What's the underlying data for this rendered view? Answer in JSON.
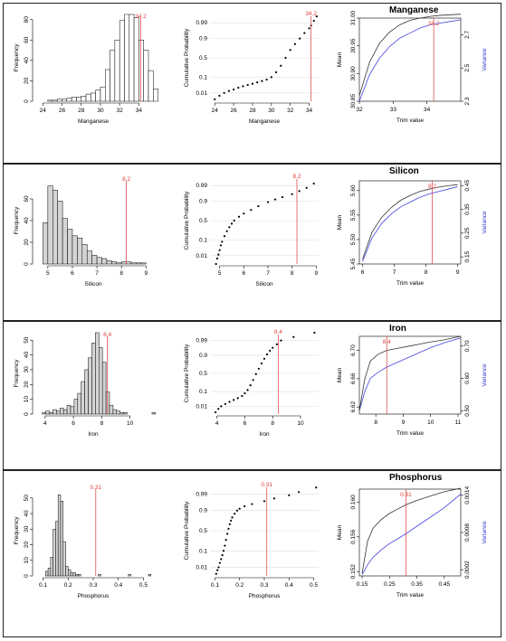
{
  "panels": [
    {
      "title": "Manganese",
      "threshold_label": "34.2",
      "chart_data": [
        {
          "type": "bar",
          "xlabel": "Manganese",
          "ylabel": "Frequency",
          "xlim": [
            23.5,
            35
          ],
          "ylim": [
            0,
            85
          ],
          "xticks": [
            24,
            26,
            28,
            30,
            32,
            34
          ],
          "yticks": [
            0,
            20,
            40,
            60,
            80
          ],
          "bin_start": 24,
          "bin_width": 0.5,
          "values": [
            0,
            1,
            1,
            2,
            2,
            3,
            4,
            4,
            5,
            7,
            8,
            11,
            14,
            31,
            50,
            60,
            79,
            85,
            85,
            82,
            60,
            50,
            30,
            12
          ],
          "threshold": 34.2
        },
        {
          "type": "scatter",
          "xlabel": "Manganese",
          "ylabel": "Cumulative Probability",
          "xlim": [
            23.5,
            35
          ],
          "xticks": [
            24,
            26,
            28,
            30,
            32,
            34
          ],
          "yticks": [
            0.01,
            0.1,
            0.5,
            0.9,
            0.99
          ],
          "ytick_labels": [
            "0.01",
            "0.1",
            "0.5",
            "0.9",
            "0.99"
          ],
          "threshold": 34.2,
          "points": [
            [
              24.0,
              0.003
            ],
            [
              24.5,
              0.006
            ],
            [
              25.0,
              0.01
            ],
            [
              25.5,
              0.014
            ],
            [
              26.0,
              0.018
            ],
            [
              26.5,
              0.024
            ],
            [
              27.0,
              0.03
            ],
            [
              27.5,
              0.036
            ],
            [
              28.0,
              0.043
            ],
            [
              28.5,
              0.052
            ],
            [
              29.0,
              0.062
            ],
            [
              29.5,
              0.075
            ],
            [
              30.0,
              0.1
            ],
            [
              30.5,
              0.17
            ],
            [
              31.0,
              0.3
            ],
            [
              31.5,
              0.5
            ],
            [
              32.0,
              0.7
            ],
            [
              32.5,
              0.82
            ],
            [
              33.0,
              0.9
            ],
            [
              33.5,
              0.95
            ],
            [
              34.0,
              0.975
            ],
            [
              34.2,
              0.984
            ],
            [
              34.5,
              0.993
            ],
            [
              34.8,
              0.997
            ]
          ]
        },
        {
          "type": "line",
          "xlabel": "Trim value",
          "ylabel": "Mean",
          "y2label": "Variance",
          "xlim": [
            32,
            35
          ],
          "ylim": [
            30.85,
            31.0
          ],
          "y2lim": [
            2.3,
            2.8
          ],
          "xticks": [
            32.0,
            33.0,
            34.0
          ],
          "yticks": [
            30.85,
            30.9,
            30.95,
            31.0
          ],
          "ytick_labels": [
            "30.85",
            "30.90",
            "30.95",
            "31.00"
          ],
          "y2ticks": [
            2.3,
            2.5,
            2.7
          ],
          "y2tick_labels": [
            "2.3",
            "2.5",
            "2.7"
          ],
          "threshold": 34.2,
          "x": [
            32.0,
            32.3,
            32.6,
            32.9,
            33.2,
            33.5,
            33.8,
            34.1,
            34.4,
            34.7,
            35.0
          ],
          "mean": [
            30.86,
            30.92,
            30.955,
            30.975,
            30.988,
            30.996,
            31.0,
            31.003,
            31.005,
            31.006,
            31.007
          ],
          "variance": [
            2.3,
            2.46,
            2.56,
            2.63,
            2.68,
            2.71,
            2.74,
            2.76,
            2.77,
            2.78,
            2.79
          ]
        }
      ]
    },
    {
      "title": "Silicon",
      "threshold_label": "8.2",
      "chart_data": [
        {
          "type": "bar",
          "xlabel": "Silicon",
          "ylabel": "Frequency",
          "xlim": [
            4.6,
            9.1
          ],
          "ylim": [
            0,
            80
          ],
          "xticks": [
            5,
            6,
            7,
            8,
            9
          ],
          "yticks": [
            0,
            20,
            40,
            60
          ],
          "bin_start": 4.8,
          "bin_width": 0.2,
          "values": [
            38,
            72,
            68,
            58,
            42,
            32,
            26,
            24,
            18,
            12,
            8,
            6,
            5,
            3,
            2,
            1,
            2,
            2,
            1,
            1,
            1,
            0
          ],
          "threshold": 8.2
        },
        {
          "type": "scatter",
          "xlabel": "Silicon",
          "ylabel": "Cumulative Probability",
          "xlim": [
            4.6,
            9.1
          ],
          "xticks": [
            5,
            6,
            7,
            8,
            9
          ],
          "yticks": [
            0.01,
            0.1,
            0.5,
            0.9,
            0.99
          ],
          "ytick_labels": [
            "0.01",
            "0.1",
            "0.5",
            "0.9",
            "0.99"
          ],
          "threshold": 8.2,
          "points": [
            [
              4.85,
              0.002
            ],
            [
              4.9,
              0.006
            ],
            [
              4.95,
              0.012
            ],
            [
              5.0,
              0.025
            ],
            [
              5.05,
              0.05
            ],
            [
              5.1,
              0.08
            ],
            [
              5.2,
              0.15
            ],
            [
              5.3,
              0.24
            ],
            [
              5.4,
              0.33
            ],
            [
              5.5,
              0.42
            ],
            [
              5.6,
              0.5
            ],
            [
              5.8,
              0.6
            ],
            [
              6.0,
              0.68
            ],
            [
              6.3,
              0.76
            ],
            [
              6.6,
              0.83
            ],
            [
              7.0,
              0.89
            ],
            [
              7.3,
              0.92
            ],
            [
              7.6,
              0.94
            ],
            [
              8.0,
              0.96
            ],
            [
              8.3,
              0.975
            ],
            [
              8.6,
              0.985
            ],
            [
              8.9,
              0.993
            ]
          ]
        },
        {
          "type": "line",
          "xlabel": "Trim value",
          "ylabel": "Mean",
          "y2label": "Variance",
          "xlim": [
            5.9,
            9.1
          ],
          "ylim": [
            5.45,
            5.62
          ],
          "y2lim": [
            0.12,
            0.47
          ],
          "xticks": [
            6.0,
            7.0,
            8.0,
            9.0
          ],
          "yticks": [
            5.45,
            5.5,
            5.55,
            5.6
          ],
          "ytick_labels": [
            "5.45",
            "5.50",
            "5.55",
            "5.60"
          ],
          "y2ticks": [
            0.15,
            0.25,
            0.35,
            0.45
          ],
          "y2tick_labels": [
            "0.15",
            "0.25",
            "0.35",
            "0.45"
          ],
          "threshold": 8.2,
          "x": [
            6.0,
            6.3,
            6.6,
            6.9,
            7.2,
            7.5,
            7.8,
            8.1,
            8.4,
            8.7,
            9.0
          ],
          "mean": [
            5.46,
            5.515,
            5.545,
            5.565,
            5.58,
            5.59,
            5.598,
            5.603,
            5.607,
            5.61,
            5.612
          ],
          "variance": [
            0.13,
            0.23,
            0.29,
            0.33,
            0.36,
            0.38,
            0.4,
            0.415,
            0.425,
            0.435,
            0.445
          ]
        }
      ]
    },
    {
      "title": "Iron",
      "threshold_label": "8.4",
      "chart_data": [
        {
          "type": "bar",
          "xlabel": "Iron",
          "ylabel": "Frequency",
          "xlim": [
            3.5,
            11.3
          ],
          "ylim": [
            0,
            55
          ],
          "xticks": [
            4,
            6,
            8,
            10
          ],
          "yticks": [
            0,
            10,
            20,
            30,
            40,
            50
          ],
          "bin_start": 3.8,
          "bin_width": 0.25,
          "values": [
            1,
            2,
            1,
            3,
            2,
            4,
            3,
            6,
            5,
            10,
            14,
            22,
            30,
            38,
            48,
            55,
            45,
            35,
            15,
            6,
            3,
            2,
            1,
            1,
            0,
            0,
            0,
            0,
            0,
            0,
            0,
            1
          ],
          "threshold": 8.4
        },
        {
          "type": "scatter",
          "xlabel": "Iron",
          "ylabel": "Cumulative Probability",
          "xlim": [
            3.5,
            11.3
          ],
          "xticks": [
            4,
            6,
            8,
            10
          ],
          "yticks": [
            0.01,
            0.1,
            0.5,
            0.9,
            0.99
          ],
          "ytick_labels": [
            "0.01",
            "0.1",
            "0.5",
            "0.9",
            "0.99"
          ],
          "threshold": 8.4,
          "points": [
            [
              3.9,
              0.003
            ],
            [
              4.1,
              0.006
            ],
            [
              4.3,
              0.01
            ],
            [
              4.6,
              0.015
            ],
            [
              4.9,
              0.022
            ],
            [
              5.2,
              0.03
            ],
            [
              5.5,
              0.04
            ],
            [
              5.8,
              0.055
            ],
            [
              6.0,
              0.08
            ],
            [
              6.2,
              0.12
            ],
            [
              6.4,
              0.2
            ],
            [
              6.6,
              0.32
            ],
            [
              6.8,
              0.48
            ],
            [
              7.0,
              0.63
            ],
            [
              7.2,
              0.76
            ],
            [
              7.4,
              0.85
            ],
            [
              7.6,
              0.91
            ],
            [
              7.8,
              0.945
            ],
            [
              8.0,
              0.965
            ],
            [
              8.3,
              0.98
            ],
            [
              8.6,
              0.99
            ],
            [
              9.5,
              0.995
            ],
            [
              11.0,
              0.998
            ]
          ]
        },
        {
          "type": "line",
          "xlabel": "Trim value",
          "ylabel": "Mean",
          "y2label": "Variance",
          "xlim": [
            7.4,
            11.1
          ],
          "ylim": [
            6.61,
            6.72
          ],
          "y2lim": [
            0.49,
            0.73
          ],
          "xticks": [
            8,
            9,
            10,
            11
          ],
          "yticks": [
            6.62,
            6.66,
            6.7
          ],
          "ytick_labels": [
            "6.62",
            "6.66",
            "6.70"
          ],
          "y2ticks": [
            0.5,
            0.6,
            0.7
          ],
          "y2tick_labels": [
            "0.50",
            "0.60",
            "0.70"
          ],
          "threshold": 8.4,
          "x": [
            7.4,
            7.6,
            7.8,
            8.1,
            8.4,
            8.8,
            9.2,
            9.6,
            10.0,
            10.5,
            11.1
          ],
          "mean": [
            6.615,
            6.66,
            6.685,
            6.695,
            6.7,
            6.703,
            6.706,
            6.709,
            6.712,
            6.715,
            6.72
          ],
          "variance": [
            0.5,
            0.56,
            0.6,
            0.62,
            0.635,
            0.65,
            0.665,
            0.68,
            0.695,
            0.71,
            0.725
          ]
        }
      ]
    },
    {
      "title": "Phosphorus",
      "threshold_label": "0.31",
      "chart_data": [
        {
          "type": "bar",
          "xlabel": "Phosphorus",
          "ylabel": "Frequency",
          "xlim": [
            0.08,
            0.52
          ],
          "ylim": [
            0,
            58
          ],
          "xticks": [
            0.1,
            0.2,
            0.3,
            0.4,
            0.5
          ],
          "yticks": [
            0,
            10,
            20,
            30,
            40,
            50
          ],
          "bin_start": 0.11,
          "bin_width": 0.01,
          "values": [
            3,
            5,
            12,
            30,
            35,
            52,
            48,
            22,
            6,
            4,
            2,
            2,
            1,
            1,
            0,
            0,
            0,
            0,
            0,
            0,
            0,
            1,
            0,
            0,
            0,
            0,
            0,
            0,
            0,
            0,
            0,
            0,
            0,
            1,
            0,
            0,
            0,
            0,
            0,
            0,
            0,
            1
          ],
          "threshold": 0.31
        },
        {
          "type": "scatter",
          "xlabel": "Phosphorus",
          "ylabel": "Cumulative Probability",
          "xlim": [
            0.08,
            0.52
          ],
          "xticks": [
            0.1,
            0.2,
            0.3,
            0.4,
            0.5
          ],
          "yticks": [
            0.01,
            0.1,
            0.5,
            0.9,
            0.99
          ],
          "ytick_labels": [
            "0.01",
            "0.1",
            "0.5",
            "0.9",
            "0.99"
          ],
          "threshold": 0.31,
          "points": [
            [
              0.105,
              0.003
            ],
            [
              0.11,
              0.006
            ],
            [
              0.115,
              0.01
            ],
            [
              0.12,
              0.02
            ],
            [
              0.125,
              0.035
            ],
            [
              0.13,
              0.06
            ],
            [
              0.135,
              0.1
            ],
            [
              0.14,
              0.17
            ],
            [
              0.145,
              0.28
            ],
            [
              0.15,
              0.42
            ],
            [
              0.155,
              0.55
            ],
            [
              0.16,
              0.66
            ],
            [
              0.165,
              0.74
            ],
            [
              0.17,
              0.8
            ],
            [
              0.18,
              0.86
            ],
            [
              0.19,
              0.9
            ],
            [
              0.2,
              0.92
            ],
            [
              0.22,
              0.94
            ],
            [
              0.25,
              0.955
            ],
            [
              0.3,
              0.97
            ],
            [
              0.34,
              0.98
            ],
            [
              0.4,
              0.988
            ],
            [
              0.44,
              0.993
            ],
            [
              0.51,
              0.997
            ]
          ]
        },
        {
          "type": "line",
          "xlabel": "Trim value",
          "ylabel": "Mean",
          "y2label": "Variance",
          "xlim": [
            0.14,
            0.51
          ],
          "ylim": [
            0.1515,
            0.1615
          ],
          "y2lim": [
            0.0001,
            0.0015
          ],
          "xticks": [
            0.15,
            0.25,
            0.35,
            0.45
          ],
          "yticks": [
            0.152,
            0.156,
            0.16
          ],
          "ytick_labels": [
            "0.152",
            "0.156",
            "0.160"
          ],
          "y2ticks": [
            0.0002,
            0.0008,
            0.0014
          ],
          "y2tick_labels": [
            "0.0002",
            "0.0008",
            "0.0014"
          ],
          "threshold": 0.31,
          "x": [
            0.15,
            0.17,
            0.19,
            0.22,
            0.25,
            0.28,
            0.31,
            0.35,
            0.4,
            0.45,
            0.51
          ],
          "mean": [
            0.1518,
            0.1555,
            0.157,
            0.158,
            0.1587,
            0.1592,
            0.1597,
            0.1602,
            0.1607,
            0.1612,
            0.1616
          ],
          "variance": [
            0.00012,
            0.00028,
            0.0004,
            0.00052,
            0.00062,
            0.0007,
            0.00078,
            0.0009,
            0.00105,
            0.0012,
            0.00142
          ]
        }
      ]
    }
  ]
}
